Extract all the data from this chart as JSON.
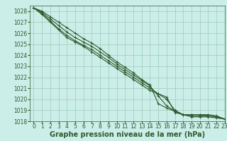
{
  "background_color": "#cceee8",
  "grid_color": "#99ccbb",
  "line_color": "#2d5a2d",
  "xlabel": "Graphe pression niveau de la mer (hPa)",
  "xlabel_fontsize": 7.0,
  "ylim": [
    1018,
    1028.5
  ],
  "xlim": [
    -0.5,
    23
  ],
  "yticks": [
    1018,
    1019,
    1020,
    1021,
    1022,
    1023,
    1024,
    1025,
    1026,
    1027,
    1028
  ],
  "xticks": [
    0,
    1,
    2,
    3,
    4,
    5,
    6,
    7,
    8,
    9,
    10,
    11,
    12,
    13,
    14,
    15,
    16,
    17,
    18,
    19,
    20,
    21,
    22,
    23
  ],
  "lines": [
    [
      1028.3,
      1028.0,
      1027.5,
      1027.0,
      1026.5,
      1026.0,
      1025.5,
      1025.1,
      1024.6,
      1024.0,
      1023.4,
      1022.9,
      1022.4,
      1021.8,
      1021.3,
      1019.6,
      1019.2,
      1018.9,
      1018.6,
      1018.4,
      1018.4,
      1018.4,
      1018.3,
      1018.2
    ],
    [
      1028.3,
      1027.9,
      1027.3,
      1026.7,
      1026.1,
      1025.6,
      1025.2,
      1024.8,
      1024.3,
      1023.8,
      1023.2,
      1022.7,
      1022.2,
      1021.7,
      1021.2,
      1020.3,
      1019.4,
      1018.9,
      1018.6,
      1018.5,
      1018.5,
      1018.5,
      1018.4,
      1018.2
    ],
    [
      1028.3,
      1027.8,
      1027.1,
      1026.4,
      1025.8,
      1025.3,
      1024.9,
      1024.5,
      1024.0,
      1023.5,
      1023.0,
      1022.5,
      1022.0,
      1021.5,
      1021.0,
      1020.5,
      1020.0,
      1019.0,
      1018.6,
      1018.6,
      1018.6,
      1018.6,
      1018.5,
      1018.2
    ],
    [
      1028.3,
      1027.7,
      1027.0,
      1026.3,
      1025.6,
      1025.2,
      1024.8,
      1024.3,
      1023.8,
      1023.3,
      1022.8,
      1022.3,
      1021.8,
      1021.3,
      1020.8,
      1020.5,
      1020.2,
      1018.8,
      1018.6,
      1018.6,
      1018.6,
      1018.5,
      1018.4,
      1018.2
    ]
  ],
  "marker": "+",
  "markersize": 2.5,
  "linewidth": 0.8,
  "tick_fontsize": 5.5
}
